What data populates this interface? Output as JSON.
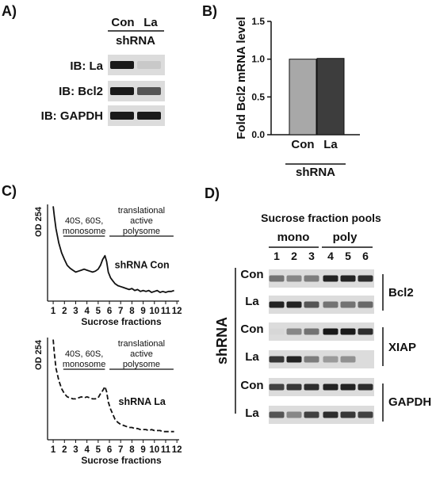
{
  "panels": {
    "A": {
      "letter": "A)",
      "lane_labels": [
        "Con",
        "La"
      ],
      "group_label": "shRNA",
      "blots": [
        {
          "label": "IB: La",
          "band_intensity": [
            1.0,
            0.12
          ]
        },
        {
          "label": "IB: Bcl2",
          "band_intensity": [
            1.0,
            0.7
          ]
        },
        {
          "label": "IB: GAPDH",
          "band_intensity": [
            1.0,
            1.0
          ]
        }
      ]
    },
    "B": {
      "letter": "B)",
      "group_label": "shRNA"
    },
    "C": {
      "letter": "C)",
      "plots": [
        {
          "series_label": "shRNA Con",
          "line_style": "solid"
        },
        {
          "series_label": "shRNA La",
          "line_style": "dashed"
        }
      ],
      "bracket_left": [
        "40S, 60S,",
        "monosome"
      ],
      "bracket_right": [
        "translational",
        "active",
        "polysome"
      ]
    },
    "D": {
      "letter": "D)",
      "title": "Sucrose fraction pools",
      "pool_labels": [
        "mono",
        "poly"
      ],
      "lanes": [
        "1",
        "2",
        "3",
        "4",
        "5",
        "6"
      ],
      "side_label": "shRNA",
      "blots": [
        {
          "condition": "Con",
          "target": "Bcl2",
          "band_intensity": [
            0.55,
            0.45,
            0.5,
            0.95,
            0.95,
            0.9
          ]
        },
        {
          "condition": "La",
          "target": "",
          "band_intensity": [
            0.95,
            0.95,
            0.7,
            0.55,
            0.55,
            0.6
          ]
        },
        {
          "condition": "Con",
          "target": "XIAP",
          "band_intensity": [
            0.05,
            0.45,
            0.55,
            1.0,
            1.0,
            0.9
          ]
        },
        {
          "condition": "La",
          "target": "",
          "band_intensity": [
            0.85,
            0.95,
            0.5,
            0.35,
            0.4,
            0.0
          ]
        },
        {
          "condition": "Con",
          "target": "GAPDH",
          "band_intensity": [
            0.8,
            0.85,
            0.9,
            0.95,
            0.95,
            0.9
          ]
        },
        {
          "condition": "La",
          "target": "",
          "band_intensity": [
            0.7,
            0.45,
            0.8,
            0.9,
            0.85,
            0.8
          ]
        }
      ]
    }
  },
  "chart_data": [
    {
      "type": "bar",
      "title": "",
      "categories": [
        "Con",
        "La"
      ],
      "values": [
        1.0,
        1.01
      ],
      "colors": [
        "#a8a8a8",
        "#3d3d3d"
      ],
      "ylabel": "Fold Bcl2 mRNA level",
      "xlabel": "shRNA",
      "ylim": [
        0,
        1.5
      ],
      "yticks": [
        "0.0",
        "0.5",
        "1.0",
        "1.5"
      ],
      "grid": false
    },
    {
      "type": "line",
      "title": "",
      "series": [
        {
          "name": "shRNA Con",
          "x": [
            1.0,
            1.1,
            1.25,
            1.5,
            1.75,
            2.0,
            2.25,
            2.5,
            2.75,
            3.0,
            3.25,
            3.5,
            3.75,
            4.0,
            4.25,
            4.5,
            4.75,
            5.0,
            5.2,
            5.4,
            5.6,
            5.75,
            5.9,
            6.1,
            6.3,
            6.5,
            6.75,
            7.0,
            7.25,
            7.5,
            7.75,
            8.0,
            8.25,
            8.5,
            8.75,
            9.0,
            9.25,
            9.5,
            9.75,
            10.0,
            10.25,
            10.5,
            10.75,
            11.0,
            11.25,
            11.5,
            11.75
          ],
          "y": [
            0.98,
            0.88,
            0.75,
            0.6,
            0.5,
            0.43,
            0.37,
            0.34,
            0.32,
            0.3,
            0.31,
            0.32,
            0.33,
            0.32,
            0.31,
            0.3,
            0.31,
            0.33,
            0.37,
            0.43,
            0.47,
            0.41,
            0.3,
            0.24,
            0.21,
            0.18,
            0.16,
            0.15,
            0.14,
            0.13,
            0.12,
            0.13,
            0.11,
            0.12,
            0.1,
            0.11,
            0.1,
            0.11,
            0.09,
            0.1,
            0.11,
            0.09,
            0.1,
            0.09,
            0.1,
            0.1,
            0.11
          ]
        }
      ],
      "xlabel": "Sucrose fractions",
      "ylabel": "OD 254",
      "xticks": [
        "1",
        "2",
        "3",
        "4",
        "5",
        "6",
        "7",
        "8",
        "9",
        "10",
        "11",
        "12"
      ],
      "xlim": [
        0.5,
        12.2
      ],
      "ylim": [
        0,
        1
      ],
      "grid": false
    },
    {
      "type": "line",
      "title": "",
      "series": [
        {
          "name": "shRNA La",
          "x": [
            1.0,
            1.1,
            1.25,
            1.5,
            1.75,
            2.0,
            2.25,
            2.5,
            2.75,
            3.0,
            3.25,
            3.5,
            3.75,
            4.0,
            4.25,
            4.5,
            4.75,
            5.0,
            5.2,
            5.4,
            5.6,
            5.75,
            5.9,
            6.1,
            6.3,
            6.5,
            6.75,
            7.0,
            7.25,
            7.5,
            7.75,
            8.0,
            8.25,
            8.5,
            8.75,
            9.0,
            9.25,
            9.5,
            9.75,
            10.0,
            10.25,
            10.5,
            10.75,
            11.0,
            11.25,
            11.5,
            11.75
          ],
          "y": [
            0.98,
            0.85,
            0.7,
            0.58,
            0.5,
            0.45,
            0.42,
            0.41,
            0.4,
            0.4,
            0.41,
            0.42,
            0.41,
            0.42,
            0.41,
            0.4,
            0.4,
            0.41,
            0.45,
            0.48,
            0.52,
            0.47,
            0.37,
            0.3,
            0.25,
            0.2,
            0.17,
            0.15,
            0.14,
            0.13,
            0.12,
            0.12,
            0.11,
            0.11,
            0.1,
            0.1,
            0.1,
            0.09,
            0.1,
            0.09,
            0.09,
            0.09,
            0.08,
            0.08,
            0.08,
            0.08,
            0.08
          ]
        }
      ],
      "xlabel": "Sucrose fractions",
      "ylabel": "OD 254",
      "xticks": [
        "1",
        "2",
        "3",
        "4",
        "5",
        "6",
        "7",
        "8",
        "9",
        "10",
        "11",
        "12"
      ],
      "xlim": [
        0.5,
        12.2
      ],
      "ylim": [
        0,
        1
      ],
      "grid": false
    }
  ]
}
